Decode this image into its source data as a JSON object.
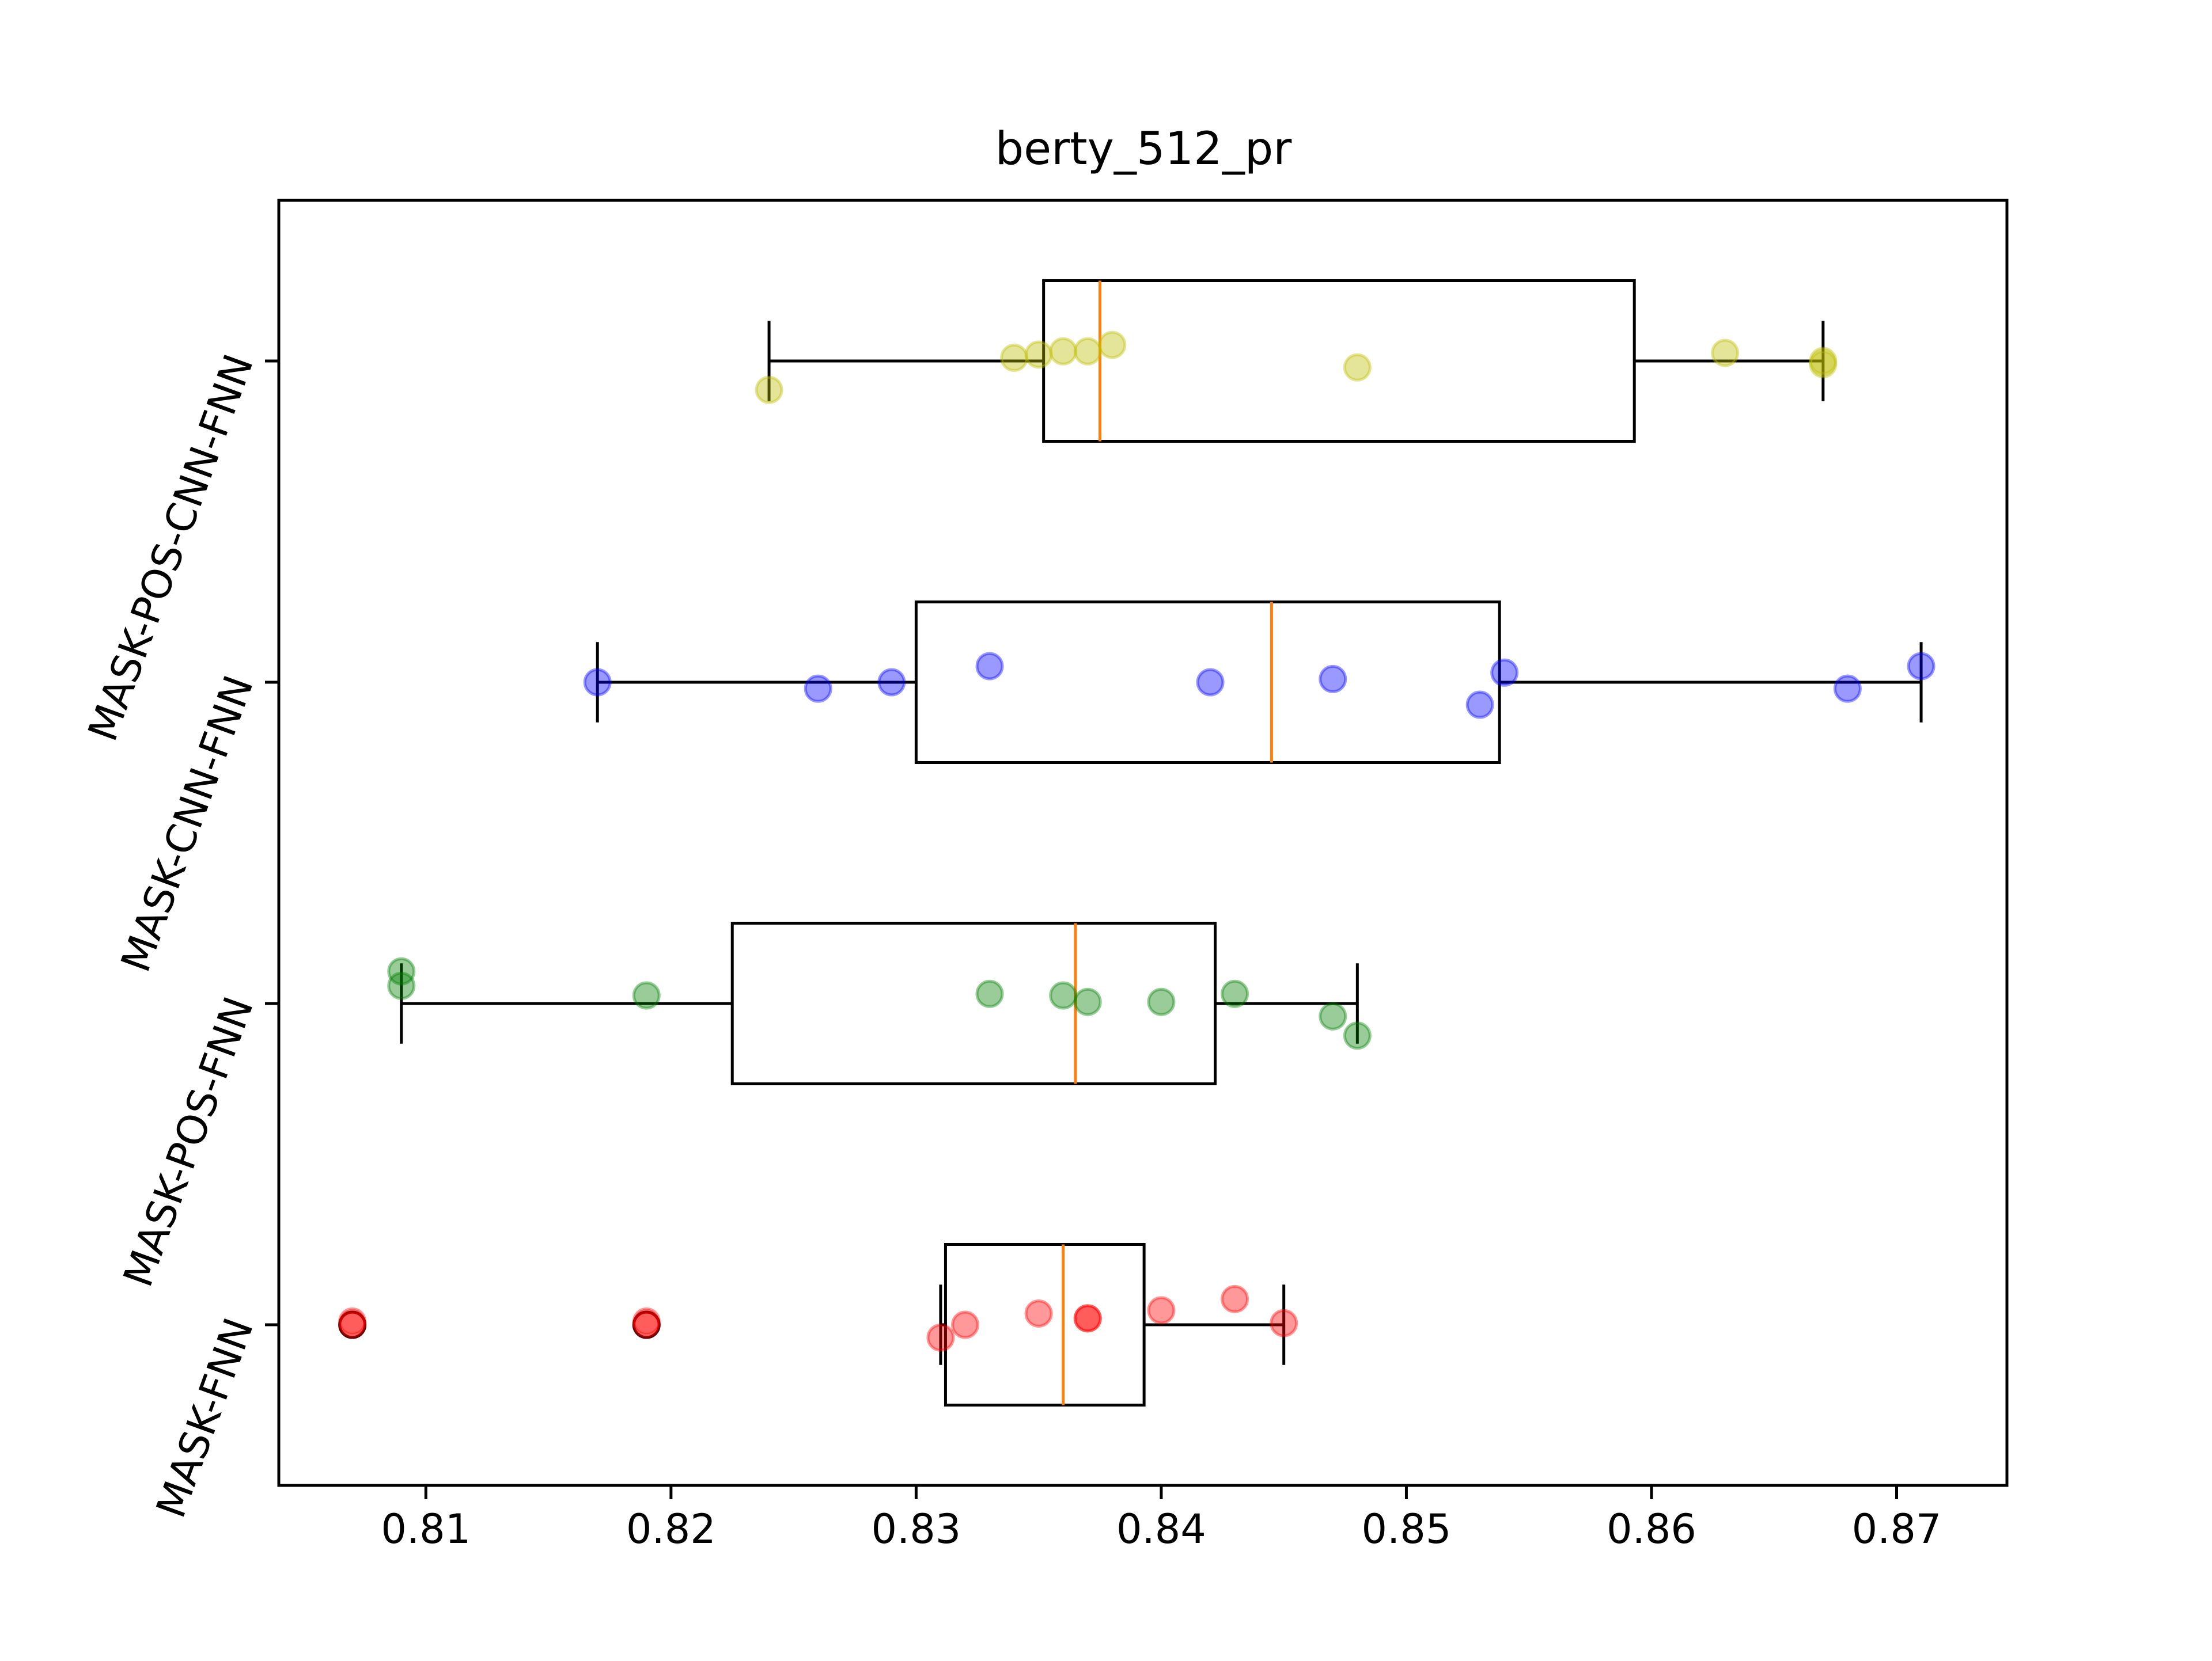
{
  "chart_data": {
    "type": "box",
    "title": "berty_512_pr",
    "xlabel": "",
    "ylabel": "",
    "orientation": "horizontal",
    "xlim": [
      0.804,
      0.8745
    ],
    "x_ticks": [
      0.81,
      0.82,
      0.83,
      0.84,
      0.85,
      0.86,
      0.87
    ],
    "x_tick_labels": [
      "0.81",
      "0.82",
      "0.83",
      "0.84",
      "0.85",
      "0.86",
      "0.87"
    ],
    "grid": false,
    "categories": [
      "MASK-FNN",
      "MASK-POS-FNN",
      "MASK-CNN-FNN",
      "MASK-POS-CNN-FNN"
    ],
    "series": [
      {
        "label": "MASK-FNN",
        "color": "#ff0000",
        "box": {
          "whisker_low": 0.831,
          "q1": 0.8312,
          "median": 0.836,
          "q3": 0.8393,
          "whisker_high": 0.845
        },
        "outliers": [
          0.807,
          0.819
        ],
        "points": [
          {
            "x": 0.807,
            "jitter": 0.01
          },
          {
            "x": 0.807,
            "jitter": 0.0
          },
          {
            "x": 0.819,
            "jitter": 0.01
          },
          {
            "x": 0.819,
            "jitter": 0.0
          },
          {
            "x": 0.831,
            "jitter": -0.04
          },
          {
            "x": 0.832,
            "jitter": 0.0
          },
          {
            "x": 0.835,
            "jitter": 0.035
          },
          {
            "x": 0.837,
            "jitter": 0.02
          },
          {
            "x": 0.837,
            "jitter": 0.02
          },
          {
            "x": 0.84,
            "jitter": 0.045
          },
          {
            "x": 0.843,
            "jitter": 0.08
          },
          {
            "x": 0.845,
            "jitter": 0.005
          }
        ]
      },
      {
        "label": "MASK-POS-FNN",
        "color": "#008000",
        "box": {
          "whisker_low": 0.809,
          "q1": 0.8225,
          "median": 0.8365,
          "q3": 0.8422,
          "whisker_high": 0.848
        },
        "outliers": [],
        "points": [
          {
            "x": 0.809,
            "jitter": 0.1
          },
          {
            "x": 0.809,
            "jitter": 0.055
          },
          {
            "x": 0.819,
            "jitter": 0.025
          },
          {
            "x": 0.833,
            "jitter": 0.03
          },
          {
            "x": 0.836,
            "jitter": 0.025
          },
          {
            "x": 0.837,
            "jitter": 0.005
          },
          {
            "x": 0.84,
            "jitter": 0.005
          },
          {
            "x": 0.843,
            "jitter": 0.03
          },
          {
            "x": 0.847,
            "jitter": -0.04
          },
          {
            "x": 0.848,
            "jitter": -0.1
          }
        ]
      },
      {
        "label": "MASK-CNN-FNN",
        "color": "#0000ff",
        "box": {
          "whisker_low": 0.817,
          "q1": 0.83,
          "median": 0.8445,
          "q3": 0.8538,
          "whisker_high": 0.871
        },
        "outliers": [],
        "points": [
          {
            "x": 0.817,
            "jitter": 0.0
          },
          {
            "x": 0.826,
            "jitter": -0.02
          },
          {
            "x": 0.829,
            "jitter": 0.0
          },
          {
            "x": 0.833,
            "jitter": 0.05
          },
          {
            "x": 0.842,
            "jitter": 0.0
          },
          {
            "x": 0.847,
            "jitter": 0.01
          },
          {
            "x": 0.853,
            "jitter": -0.07
          },
          {
            "x": 0.854,
            "jitter": 0.03
          },
          {
            "x": 0.868,
            "jitter": -0.02
          },
          {
            "x": 0.871,
            "jitter": 0.05
          }
        ]
      },
      {
        "label": "MASK-POS-CNN-FNN",
        "color": "#bfbf00",
        "box": {
          "whisker_low": 0.824,
          "q1": 0.8352,
          "median": 0.8375,
          "q3": 0.8593,
          "whisker_high": 0.867
        },
        "outliers": [],
        "points": [
          {
            "x": 0.824,
            "jitter": -0.09
          },
          {
            "x": 0.834,
            "jitter": 0.01
          },
          {
            "x": 0.835,
            "jitter": 0.02
          },
          {
            "x": 0.836,
            "jitter": 0.03
          },
          {
            "x": 0.837,
            "jitter": 0.03
          },
          {
            "x": 0.838,
            "jitter": 0.05
          },
          {
            "x": 0.848,
            "jitter": -0.02
          },
          {
            "x": 0.863,
            "jitter": 0.025
          },
          {
            "x": 0.867,
            "jitter": 0.0
          },
          {
            "x": 0.867,
            "jitter": -0.01
          }
        ]
      }
    ]
  }
}
